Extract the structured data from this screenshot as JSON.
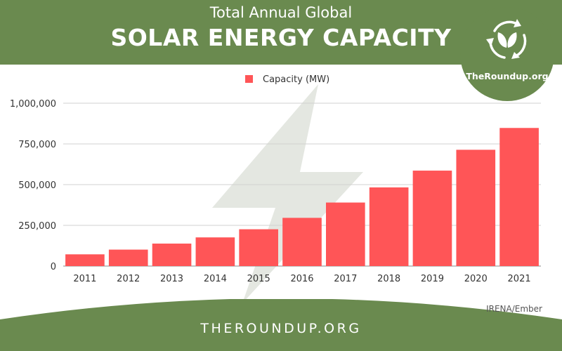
{
  "header": {
    "subtitle": "Total Annual Global",
    "title": "SOLAR ENERGY CAPACITY"
  },
  "logo": {
    "text": "TheRoundup.org",
    "icon": "recycle-leaf-icon"
  },
  "chart_data": {
    "type": "bar",
    "categories": [
      "2011",
      "2012",
      "2013",
      "2014",
      "2015",
      "2016",
      "2017",
      "2018",
      "2019",
      "2020",
      "2021"
    ],
    "series": [
      {
        "name": "Capacity (MW)",
        "values": [
          72000,
          101000,
          138000,
          176000,
          226000,
          296000,
          390000,
          483000,
          586000,
          714000,
          848000
        ]
      }
    ],
    "ylim": [
      0,
      1000000
    ],
    "yticks": [
      0,
      250000,
      500000,
      750000,
      1000000
    ],
    "ytick_labels": [
      "0",
      "250,000",
      "500,000",
      "750,000",
      "1,000,000"
    ],
    "grid": true,
    "legend": "top-center",
    "bar_color": "#ff5557"
  },
  "source": "IRENA/Ember",
  "footer": {
    "text": "THEROUNDUP.ORG"
  },
  "colors": {
    "brand_green": "#6a8a4f",
    "bolt": "#e4e7e1",
    "bar": "#ff5557"
  }
}
